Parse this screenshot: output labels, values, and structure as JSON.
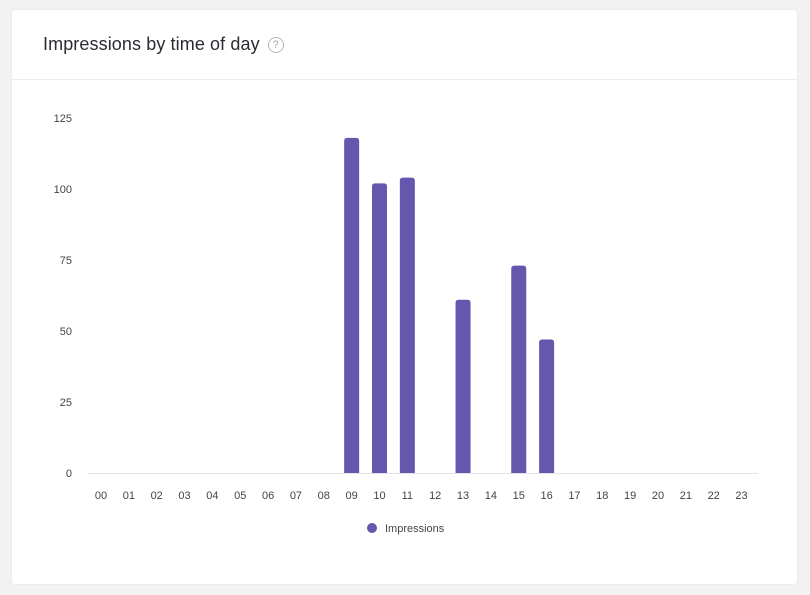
{
  "card": {
    "title": "Impressions by time of day",
    "help_icon": "question-circle-icon"
  },
  "chart_data": {
    "type": "bar",
    "categories": [
      "00",
      "01",
      "02",
      "03",
      "04",
      "05",
      "06",
      "07",
      "08",
      "09",
      "10",
      "11",
      "12",
      "13",
      "14",
      "15",
      "16",
      "17",
      "18",
      "19",
      "20",
      "21",
      "22",
      "23"
    ],
    "series": [
      {
        "name": "Impressions",
        "color": "#6457ad",
        "values": [
          0,
          0,
          0,
          0,
          0,
          0,
          0,
          0,
          0,
          118,
          102,
          104,
          0,
          61,
          0,
          73,
          47,
          0,
          0,
          0,
          0,
          0,
          0,
          0
        ]
      }
    ],
    "y_ticks": [
      "0",
      "25",
      "50",
      "75",
      "100",
      "125"
    ],
    "ylim": [
      0,
      125
    ],
    "xlabel": "",
    "ylabel": "",
    "grid": false,
    "legend_position": "bottom-center"
  }
}
